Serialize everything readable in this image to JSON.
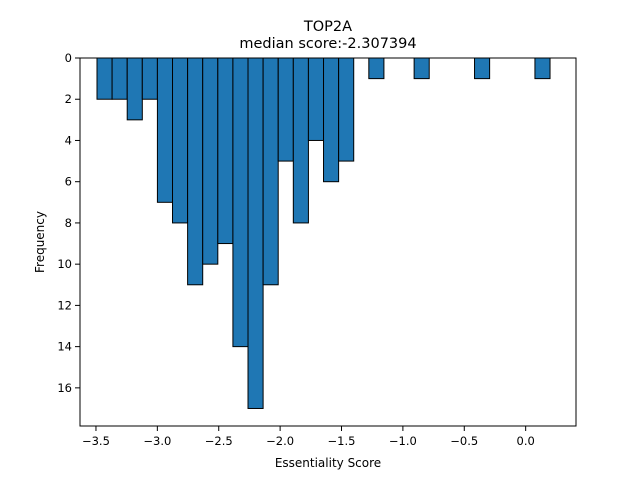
{
  "chart_data": {
    "type": "bar",
    "title": "TOP2A",
    "subtitle": "median score:-2.307394",
    "xlabel": "Essentiality Score",
    "ylabel": "Frequency",
    "xlim": [
      -3.63,
      0.41
    ],
    "ylim": [
      0,
      17.85
    ],
    "y_inverted": true,
    "grid": false,
    "bin_width": 0.123,
    "bar_color": "#1f77b4",
    "edge_color": "#000000",
    "bins": [
      {
        "x": -3.43,
        "count": 2
      },
      {
        "x": -3.307,
        "count": 2
      },
      {
        "x": -3.184,
        "count": 3
      },
      {
        "x": -3.061,
        "count": 2
      },
      {
        "x": -2.938,
        "count": 7
      },
      {
        "x": -2.815,
        "count": 8
      },
      {
        "x": -2.692,
        "count": 11
      },
      {
        "x": -2.569,
        "count": 10
      },
      {
        "x": -2.446,
        "count": 9
      },
      {
        "x": -2.323,
        "count": 14
      },
      {
        "x": -2.2,
        "count": 17
      },
      {
        "x": -2.077,
        "count": 11
      },
      {
        "x": -1.954,
        "count": 5
      },
      {
        "x": -1.831,
        "count": 8
      },
      {
        "x": -1.708,
        "count": 4
      },
      {
        "x": -1.585,
        "count": 6
      },
      {
        "x": -1.462,
        "count": 5
      },
      {
        "x": -1.216,
        "count": 1
      },
      {
        "x": -0.847,
        "count": 1
      },
      {
        "x": -0.355,
        "count": 1
      },
      {
        "x": 0.137,
        "count": 1
      }
    ],
    "x_ticks": [
      -3.5,
      -3.0,
      -2.5,
      -2.0,
      -1.5,
      -1.0,
      -0.5,
      0.0
    ],
    "x_tick_labels": [
      "−3.5",
      "−3.0",
      "−2.5",
      "−2.0",
      "−1.5",
      "−1.0",
      "−0.5",
      "0.0"
    ],
    "y_ticks": [
      0,
      2,
      4,
      6,
      8,
      10,
      12,
      14,
      16
    ],
    "y_tick_labels": [
      "0",
      "2",
      "4",
      "6",
      "8",
      "10",
      "12",
      "14",
      "16"
    ]
  }
}
